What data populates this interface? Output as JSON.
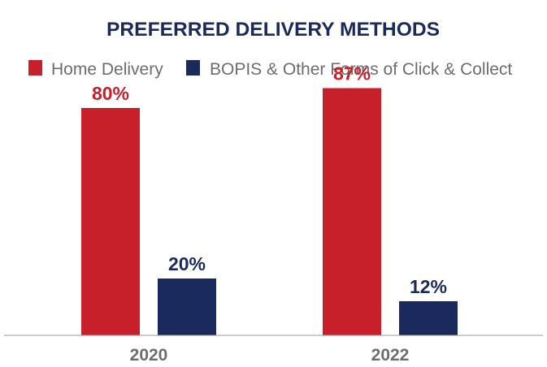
{
  "chart_data": {
    "type": "bar",
    "title": "PREFERRED DELIVERY METHODS",
    "categories": [
      "2020",
      "2022"
    ],
    "series": [
      {
        "name": "Home Delivery",
        "values": [
          80,
          87
        ],
        "labels": [
          "80%",
          "87%"
        ],
        "color": "#c8202a"
      },
      {
        "name": "BOPIS & Other Forms of Click & Collect",
        "values": [
          20,
          12
        ],
        "labels": [
          "20%",
          "12%"
        ],
        "color": "#1b2a5c"
      }
    ],
    "ylim": [
      0,
      100
    ],
    "unit": "%",
    "legend_position": "top",
    "grid": false
  }
}
